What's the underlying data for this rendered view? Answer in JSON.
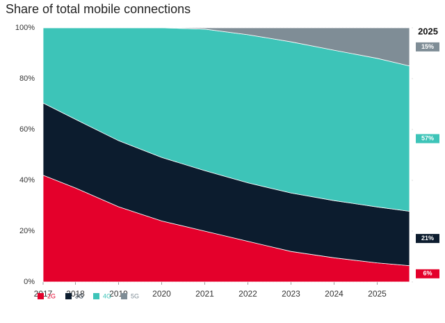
{
  "chart_data": {
    "type": "stacked_area",
    "title": "Share of total mobile connections",
    "x": [
      2017.25,
      2018,
      2019,
      2020,
      2021,
      2022,
      2023,
      2024,
      2025,
      2025.75
    ],
    "xlim": [
      2017.25,
      2025.75
    ],
    "xticks": [
      {
        "value": 2017.25,
        "label": "2017"
      },
      2018,
      2019,
      2020,
      2021,
      2022,
      2023,
      2024,
      2025
    ],
    "ylim": [
      0,
      100
    ],
    "yticks": [
      {
        "value": 0,
        "label": "0%"
      },
      {
        "value": 20,
        "label": "20%"
      },
      {
        "value": 40,
        "label": "40%"
      },
      {
        "value": 60,
        "label": "60%"
      },
      {
        "value": 80,
        "label": "80%"
      },
      {
        "value": 100,
        "label": "100%"
      }
    ],
    "end_label_title": "2025",
    "series": [
      {
        "name": "2G",
        "color": "#e4002b",
        "values": [
          42,
          37,
          29.6,
          24,
          20,
          16,
          12,
          9.5,
          7.5,
          6.4
        ],
        "value_labels": [
          null,
          null,
          null,
          null,
          null,
          null,
          null,
          null,
          null,
          "6%"
        ]
      },
      {
        "name": "3G",
        "color": "#0c1c2e",
        "values": [
          28.4,
          27,
          26,
          25,
          23.8,
          23,
          23,
          22.5,
          22,
          21.4
        ],
        "value_labels": [
          null,
          null,
          null,
          null,
          null,
          null,
          null,
          null,
          null,
          "21%"
        ]
      },
      {
        "name": "4G",
        "color": "#3dc4b8",
        "values": [
          29.6,
          36,
          44.4,
          51,
          55.7,
          58.3,
          59.5,
          59.2,
          58.5,
          57.2
        ],
        "value_labels": [
          null,
          null,
          null,
          null,
          null,
          null,
          null,
          null,
          null,
          "57%"
        ]
      },
      {
        "name": "5G",
        "color": "#7f8d96",
        "values": [
          0,
          0,
          0,
          0,
          0.5,
          2.7,
          5.5,
          8.8,
          12,
          15
        ],
        "value_labels": [
          null,
          null,
          null,
          null,
          null,
          null,
          null,
          null,
          null,
          "15%"
        ]
      }
    ]
  }
}
